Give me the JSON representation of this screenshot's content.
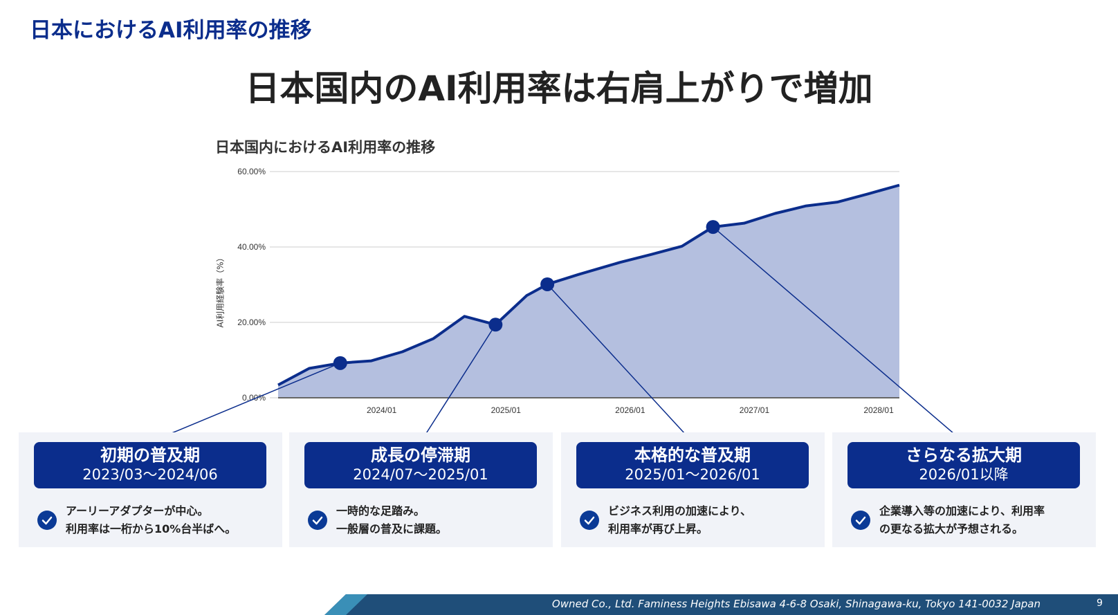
{
  "page_title": "日本におけるAI利用率の推移",
  "headline": "日本国内のAI利用率は右肩上がりで増加",
  "colors": {
    "navy": "#0b2d8c",
    "area_fill": "#b4bfdf",
    "card_bg": "#f1f3f8",
    "footer": "#1f4e79",
    "footer_accent": "#3a8fb7"
  },
  "chart_data": {
    "type": "area",
    "title": "日本国内におけるAI利用率の推移",
    "xlabel": "",
    "ylabel": "AI利用経験率（%）",
    "ylim": [
      0,
      60
    ],
    "yticks": [
      "0.00%",
      "20.00%",
      "40.00%",
      "60.00%"
    ],
    "ytick_values": [
      0,
      20,
      40,
      60
    ],
    "xticks": [
      "2024/01",
      "2025/01",
      "2026/01",
      "2027/01",
      "2028/01"
    ],
    "xlim": [
      "2023/03",
      "2028/03"
    ],
    "grid": true,
    "x": [
      "2023/03",
      "2023/06",
      "2023/09",
      "2023/12",
      "2024/03",
      "2024/06",
      "2024/09",
      "2024/12",
      "2025/03",
      "2025/05",
      "2025/08",
      "2025/12",
      "2026/03",
      "2026/06",
      "2026/09",
      "2026/12",
      "2027/03",
      "2027/06",
      "2027/09",
      "2027/12",
      "2028/03"
    ],
    "values": [
      3.4,
      7.8,
      9.2,
      9.8,
      12.2,
      15.7,
      21.6,
      19.4,
      27.1,
      30.1,
      32.7,
      35.9,
      38.0,
      40.2,
      45.3,
      46.3,
      48.9,
      50.9,
      51.9,
      54.1,
      56.4
    ],
    "highlighted_points": [
      "2023/09",
      "2024/12",
      "2025/05",
      "2026/09"
    ]
  },
  "phases": [
    {
      "title": "初期の普及期",
      "period": "2023/03〜2024/06",
      "lines": [
        "アーリーアダプターが中心。",
        "利用率は一桁から10%台半ばへ。"
      ]
    },
    {
      "title": "成長の停滞期",
      "period": "2024/07〜2025/01",
      "lines": [
        "一時的な足踏み。",
        "一般層の普及に課題。"
      ]
    },
    {
      "title": "本格的な普及期",
      "period": "2025/01〜2026/01",
      "lines": [
        "ビジネス利用の加速により、",
        "利用率が再び上昇。"
      ]
    },
    {
      "title": "さらなる拡大期",
      "period": "2026/01以降",
      "lines": [
        "企業導入等の加速により、利用率",
        "の更なる拡大が予想される。"
      ]
    }
  ],
  "footer": {
    "address": "Owned Co., Ltd. Faminess Heights Ebisawa 4-6-8 Osaki, Shinagawa-ku, Tokyo 141-0032 Japan",
    "page_number": "9"
  }
}
